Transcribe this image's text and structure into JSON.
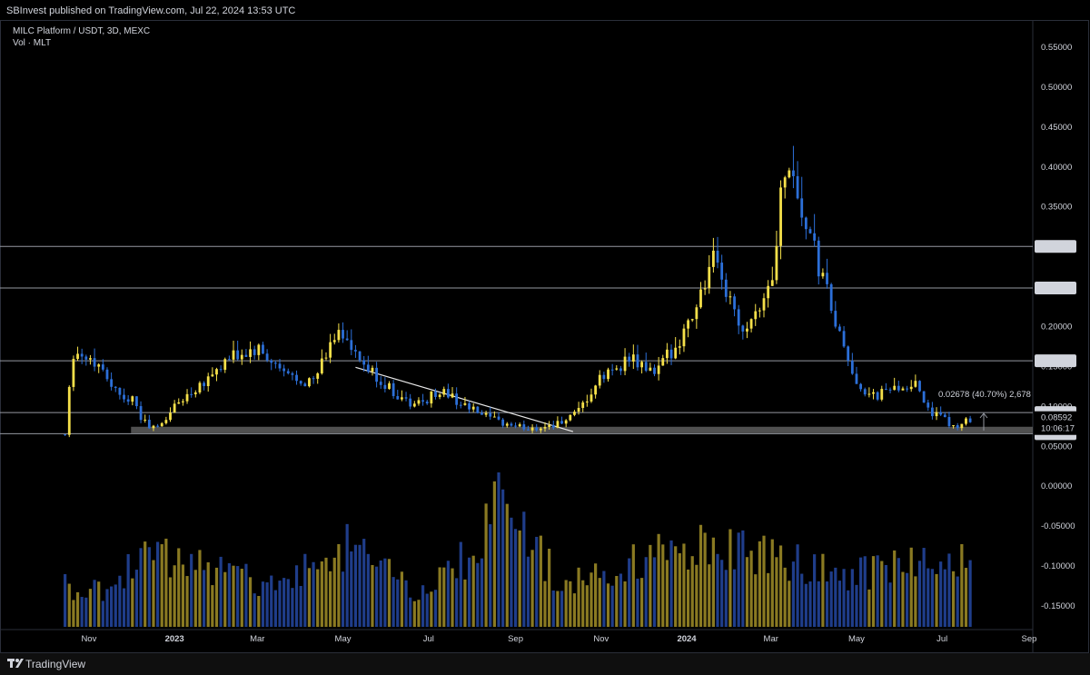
{
  "header": {
    "published": "SBInvest published on TradingView.com, Jul 22, 2024 13:53 UTC"
  },
  "legend": {
    "symbol": "MILC Platform / USDT, 3D, MEXC",
    "volume": "Vol · MLT"
  },
  "footer": {
    "brand": "TradingView"
  },
  "colors": {
    "background": "#000000",
    "up_candle": "#f5e04a",
    "down_candle": "#2c6fd8",
    "up_volume": "#8a7a22",
    "down_volume": "#1f3d8a",
    "level_line": "#9598a1",
    "support_zone": "#6b6b6b"
  },
  "chart_data": {
    "type": "candlestick",
    "title": "MILC Platform / USDT, 3D, MEXC",
    "x_ticks": [
      "Nov",
      "2023",
      "Mar",
      "May",
      "Jul",
      "Sep",
      "Nov",
      "2024",
      "Mar",
      "May",
      "Jul",
      "Sep"
    ],
    "y_ticks": [
      "0.55000",
      "0.50000",
      "0.45000",
      "0.40000",
      "0.35000",
      "0.30000",
      "0.25000",
      "0.20000",
      "0.15000",
      "0.10000",
      "0.05000",
      "0.00000",
      "-0.05000",
      "-0.10000",
      "-0.15000"
    ],
    "ylim": [
      -0.175,
      0.58
    ],
    "price_levels": [
      {
        "label": "0.30044",
        "value": 0.30044
      },
      {
        "label": "0.24840",
        "value": 0.2484
      },
      {
        "label": "0.15716",
        "value": 0.15716
      },
      {
        "label": "0.09231",
        "value": 0.09231
      },
      {
        "label": "0.06585",
        "value": 0.06585
      }
    ],
    "current_price": {
      "label": "0.08592",
      "value": 0.08592,
      "countdown": "10:06:17"
    },
    "support_zone": {
      "low": 0.0665,
      "high": 0.0745
    },
    "trendline": {
      "start": [
        "2023-05-10",
        0.149
      ],
      "end": [
        "2023-10-12",
        0.0685
      ]
    },
    "measure_annotation": "0.02678 (40.70%) 2,678",
    "price_series": [
      {
        "date": "2022-10-15",
        "price": 0.065
      },
      {
        "date": "2022-10-20",
        "price": 0.17
      },
      {
        "date": "2022-11-01",
        "price": 0.16
      },
      {
        "date": "2022-11-10",
        "price": 0.15
      },
      {
        "date": "2022-11-20",
        "price": 0.12
      },
      {
        "date": "2022-12-01",
        "price": 0.11
      },
      {
        "date": "2022-12-10",
        "price": 0.08
      },
      {
        "date": "2022-12-20",
        "price": 0.072
      },
      {
        "date": "2023-01-01",
        "price": 0.1
      },
      {
        "date": "2023-01-20",
        "price": 0.13
      },
      {
        "date": "2023-02-10",
        "price": 0.16
      },
      {
        "date": "2023-03-01",
        "price": 0.17
      },
      {
        "date": "2023-03-20",
        "price": 0.14
      },
      {
        "date": "2023-04-10",
        "price": 0.13
      },
      {
        "date": "2023-04-28",
        "price": 0.2
      },
      {
        "date": "2023-05-10",
        "price": 0.16
      },
      {
        "date": "2023-06-01",
        "price": 0.125
      },
      {
        "date": "2023-06-20",
        "price": 0.1
      },
      {
        "date": "2023-07-10",
        "price": 0.12
      },
      {
        "date": "2023-08-01",
        "price": 0.095
      },
      {
        "date": "2023-08-20",
        "price": 0.08
      },
      {
        "date": "2023-09-10",
        "price": 0.072
      },
      {
        "date": "2023-10-01",
        "price": 0.078
      },
      {
        "date": "2023-10-15",
        "price": 0.09
      },
      {
        "date": "2023-11-01",
        "price": 0.135
      },
      {
        "date": "2023-11-20",
        "price": 0.16
      },
      {
        "date": "2023-12-10",
        "price": 0.14
      },
      {
        "date": "2024-01-01",
        "price": 0.2
      },
      {
        "date": "2024-01-20",
        "price": 0.28
      },
      {
        "date": "2024-02-10",
        "price": 0.2
      },
      {
        "date": "2024-03-01",
        "price": 0.25
      },
      {
        "date": "2024-03-12",
        "price": 0.42
      },
      {
        "date": "2024-03-25",
        "price": 0.33
      },
      {
        "date": "2024-04-10",
        "price": 0.24
      },
      {
        "date": "2024-04-25",
        "price": 0.15
      },
      {
        "date": "2024-05-10",
        "price": 0.11
      },
      {
        "date": "2024-05-25",
        "price": 0.12
      },
      {
        "date": "2024-06-10",
        "price": 0.13
      },
      {
        "date": "2024-06-25",
        "price": 0.09
      },
      {
        "date": "2024-07-10",
        "price": 0.075
      },
      {
        "date": "2024-07-22",
        "price": 0.0859
      }
    ],
    "volume_series": [
      {
        "date": "2022-10-20",
        "value": 0.25
      },
      {
        "date": "2022-11-20",
        "value": 0.3
      },
      {
        "date": "2022-12-10",
        "value": 0.6
      },
      {
        "date": "2023-01-20",
        "value": 0.45
      },
      {
        "date": "2023-03-20",
        "value": 0.3
      },
      {
        "date": "2023-05-01",
        "value": 0.65
      },
      {
        "date": "2023-06-20",
        "value": 0.25
      },
      {
        "date": "2023-08-01",
        "value": 0.55
      },
      {
        "date": "2023-08-25",
        "value": 1.0
      },
      {
        "date": "2023-10-01",
        "value": 0.35
      },
      {
        "date": "2024-01-01",
        "value": 0.6
      },
      {
        "date": "2024-03-10",
        "value": 0.55
      },
      {
        "date": "2024-05-01",
        "value": 0.4
      },
      {
        "date": "2024-07-20",
        "value": 0.5
      }
    ]
  }
}
